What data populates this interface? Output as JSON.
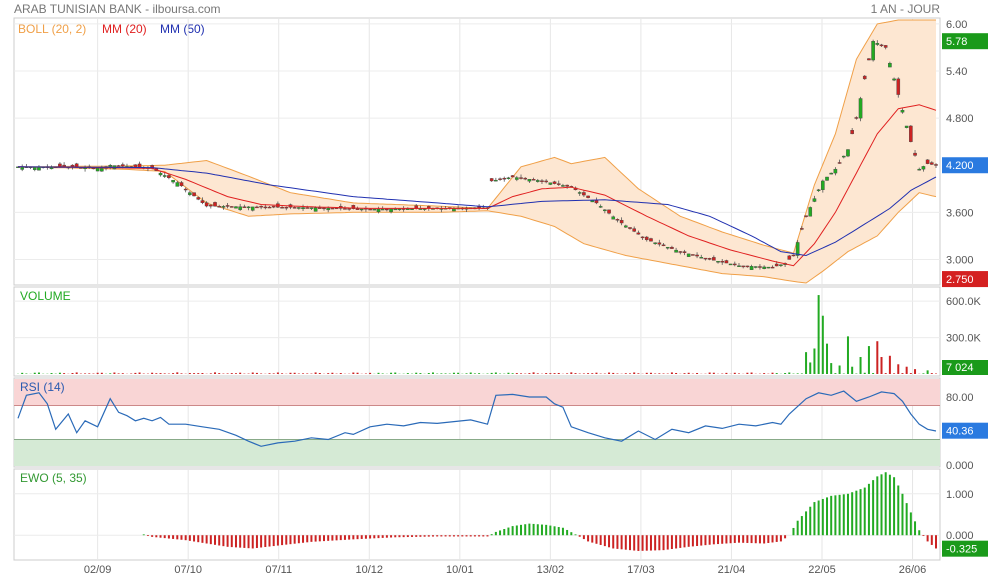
{
  "header": {
    "title": "ARAB TUNISIAN BANK - ilboursa.com",
    "period": "1 AN - JOUR"
  },
  "legend": {
    "boll": "BOLL (20, 2)",
    "mm20": "MM (20)",
    "mm50": "MM (50)"
  },
  "colors": {
    "boll": "#f0a048",
    "boll_fill": "#fde7d2",
    "mm20": "#e02020",
    "mm50": "#2030b0",
    "up": "#22aa22",
    "down": "#cc2222",
    "rsi_line": "#2a6ab8",
    "rsi_high_zone": "#f9d5d5",
    "rsi_low_zone": "#d5ead5",
    "badge_green": "#1a9a1a",
    "badge_blue": "#2a7ae0",
    "badge_red": "#d42020"
  },
  "chart_data": [
    {
      "panel": "price",
      "type": "candlestick",
      "yticks": [
        "6.00",
        "5.40",
        "4.800",
        "3.600",
        "3.000"
      ],
      "ylim": [
        2.7,
        6.05
      ],
      "badges": [
        {
          "label": "5.78",
          "value": 5.78,
          "color": "badge_green"
        },
        {
          "label": "4.200",
          "value": 4.2,
          "color": "badge_blue"
        },
        {
          "label": "2.750",
          "value": 2.75,
          "color": "badge_red"
        }
      ],
      "xlabels": [
        "02/09",
        "07/10",
        "07/11",
        "10/12",
        "10/01",
        "13/02",
        "17/03",
        "21/04",
        "22/05",
        "26/06"
      ],
      "close_path": [
        [
          0,
          4.18
        ],
        [
          10,
          4.18
        ],
        [
          20,
          4.16
        ],
        [
          22,
          4.2
        ],
        [
          32,
          4.16
        ],
        [
          38,
          3.98
        ],
        [
          45,
          3.68
        ],
        [
          55,
          3.67
        ],
        [
          70,
          3.66
        ],
        [
          84,
          3.64
        ],
        [
          100,
          3.65
        ],
        [
          112,
          3.66
        ],
        [
          113,
          4.0
        ],
        [
          118,
          4.05
        ],
        [
          125,
          4.0
        ],
        [
          132,
          3.92
        ],
        [
          138,
          3.72
        ],
        [
          143,
          3.5
        ],
        [
          150,
          3.25
        ],
        [
          158,
          3.1
        ],
        [
          165,
          3.0
        ],
        [
          172,
          2.92
        ],
        [
          180,
          2.9
        ],
        [
          183,
          2.95
        ],
        [
          185,
          3.05
        ],
        [
          188,
          3.55
        ],
        [
          192,
          4.0
        ],
        [
          195,
          4.15
        ],
        [
          198,
          4.4
        ],
        [
          200,
          4.8
        ],
        [
          202,
          5.3
        ],
        [
          204,
          5.78
        ],
        [
          207,
          5.7
        ],
        [
          209,
          5.3
        ],
        [
          211,
          4.9
        ],
        [
          213,
          4.5
        ],
        [
          215,
          4.15
        ],
        [
          217,
          4.22
        ],
        [
          219,
          4.2
        ]
      ],
      "mm20_path": [
        [
          0,
          4.18
        ],
        [
          20,
          4.17
        ],
        [
          32,
          4.16
        ],
        [
          40,
          4.02
        ],
        [
          50,
          3.8
        ],
        [
          58,
          3.7
        ],
        [
          70,
          3.67
        ],
        [
          84,
          3.65
        ],
        [
          100,
          3.65
        ],
        [
          112,
          3.65
        ],
        [
          118,
          3.8
        ],
        [
          125,
          3.9
        ],
        [
          132,
          3.92
        ],
        [
          140,
          3.82
        ],
        [
          150,
          3.55
        ],
        [
          160,
          3.3
        ],
        [
          170,
          3.12
        ],
        [
          180,
          2.98
        ],
        [
          185,
          2.92
        ],
        [
          190,
          3.2
        ],
        [
          195,
          3.6
        ],
        [
          200,
          4.1
        ],
        [
          205,
          4.6
        ],
        [
          210,
          4.92
        ],
        [
          215,
          4.97
        ],
        [
          219,
          4.9
        ]
      ],
      "mm50_path": [
        [
          0,
          4.18
        ],
        [
          32,
          4.17
        ],
        [
          45,
          4.1
        ],
        [
          60,
          3.95
        ],
        [
          80,
          3.8
        ],
        [
          100,
          3.72
        ],
        [
          112,
          3.67
        ],
        [
          125,
          3.74
        ],
        [
          140,
          3.76
        ],
        [
          155,
          3.7
        ],
        [
          165,
          3.55
        ],
        [
          175,
          3.3
        ],
        [
          182,
          3.1
        ],
        [
          188,
          3.05
        ],
        [
          195,
          3.22
        ],
        [
          202,
          3.45
        ],
        [
          208,
          3.65
        ],
        [
          213,
          3.88
        ],
        [
          219,
          4.05
        ]
      ],
      "boll_upper_path": [
        [
          0,
          4.18
        ],
        [
          25,
          4.19
        ],
        [
          35,
          4.2
        ],
        [
          45,
          4.26
        ],
        [
          55,
          4.06
        ],
        [
          65,
          3.85
        ],
        [
          80,
          3.72
        ],
        [
          100,
          3.68
        ],
        [
          112,
          3.65
        ],
        [
          120,
          4.18
        ],
        [
          128,
          4.3
        ],
        [
          132,
          4.22
        ],
        [
          140,
          4.3
        ],
        [
          148,
          3.9
        ],
        [
          158,
          3.55
        ],
        [
          168,
          3.35
        ],
        [
          178,
          3.18
        ],
        [
          185,
          3.08
        ],
        [
          190,
          3.95
        ],
        [
          195,
          4.6
        ],
        [
          200,
          5.55
        ],
        [
          205,
          6.0
        ],
        [
          210,
          6.05
        ],
        [
          219,
          6.05
        ]
      ],
      "boll_lower_path": [
        [
          0,
          4.18
        ],
        [
          25,
          4.15
        ],
        [
          35,
          4.12
        ],
        [
          45,
          3.72
        ],
        [
          55,
          3.55
        ],
        [
          65,
          3.58
        ],
        [
          80,
          3.6
        ],
        [
          100,
          3.6
        ],
        [
          112,
          3.62
        ],
        [
          120,
          3.55
        ],
        [
          128,
          3.42
        ],
        [
          135,
          3.2
        ],
        [
          145,
          3.05
        ],
        [
          158,
          2.92
        ],
        [
          168,
          2.82
        ],
        [
          178,
          2.78
        ],
        [
          185,
          2.72
        ],
        [
          188,
          2.7
        ],
        [
          192,
          2.85
        ],
        [
          198,
          3.1
        ],
        [
          205,
          3.3
        ],
        [
          210,
          3.6
        ],
        [
          215,
          3.85
        ],
        [
          219,
          3.8
        ]
      ]
    },
    {
      "panel": "volume",
      "type": "bar",
      "label": "VOLUME",
      "yticks": [
        "600.0K",
        "300.0K"
      ],
      "ylim": [
        0,
        700000
      ],
      "badge": {
        "label": "7 024",
        "value": 7024
      },
      "spikes": [
        [
          188,
          180000
        ],
        [
          189,
          95000
        ],
        [
          190,
          210000
        ],
        [
          191,
          650000
        ],
        [
          192,
          480000
        ],
        [
          193,
          250000
        ],
        [
          194,
          90000
        ],
        [
          196,
          70000
        ],
        [
          198,
          310000
        ],
        [
          199,
          60000
        ],
        [
          201,
          140000
        ],
        [
          203,
          230000
        ],
        [
          205,
          270000
        ],
        [
          206,
          140000
        ],
        [
          208,
          150000
        ],
        [
          210,
          80000
        ],
        [
          212,
          60000
        ],
        [
          214,
          40000
        ],
        [
          217,
          30000
        ]
      ]
    },
    {
      "panel": "rsi",
      "type": "line",
      "label": "RSI (14)",
      "yticks": [
        "80.00",
        "0.000"
      ],
      "ylim": [
        0,
        100
      ],
      "zones": [
        70,
        30
      ],
      "badge": {
        "label": "40.36",
        "value": 40.36
      },
      "points": [
        [
          0,
          55
        ],
        [
          2,
          82
        ],
        [
          5,
          85
        ],
        [
          7,
          72
        ],
        [
          9,
          42
        ],
        [
          12,
          60
        ],
        [
          14,
          38
        ],
        [
          16,
          52
        ],
        [
          19,
          45
        ],
        [
          22,
          78
        ],
        [
          24,
          62
        ],
        [
          26,
          58
        ],
        [
          28,
          52
        ],
        [
          30,
          55
        ],
        [
          32,
          52
        ],
        [
          34,
          56
        ],
        [
          36,
          48
        ],
        [
          40,
          48
        ],
        [
          44,
          45
        ],
        [
          48,
          42
        ],
        [
          52,
          35
        ],
        [
          55,
          28
        ],
        [
          58,
          22
        ],
        [
          62,
          26
        ],
        [
          66,
          28
        ],
        [
          70,
          32
        ],
        [
          74,
          30
        ],
        [
          78,
          38
        ],
        [
          80,
          36
        ],
        [
          84,
          45
        ],
        [
          88,
          48
        ],
        [
          92,
          46
        ],
        [
          96,
          50
        ],
        [
          100,
          49
        ],
        [
          104,
          51
        ],
        [
          108,
          53
        ],
        [
          112,
          48
        ],
        [
          114,
          82
        ],
        [
          118,
          83
        ],
        [
          122,
          80
        ],
        [
          126,
          80
        ],
        [
          128,
          72
        ],
        [
          130,
          68
        ],
        [
          132,
          45
        ],
        [
          136,
          38
        ],
        [
          140,
          32
        ],
        [
          144,
          28
        ],
        [
          148,
          40
        ],
        [
          152,
          30
        ],
        [
          156,
          42
        ],
        [
          160,
          38
        ],
        [
          164,
          46
        ],
        [
          168,
          43
        ],
        [
          172,
          48
        ],
        [
          176,
          46
        ],
        [
          180,
          50
        ],
        [
          182,
          48
        ],
        [
          184,
          60
        ],
        [
          188,
          78
        ],
        [
          191,
          85
        ],
        [
          194,
          82
        ],
        [
          197,
          87
        ],
        [
          200,
          75
        ],
        [
          203,
          80
        ],
        [
          206,
          86
        ],
        [
          209,
          84
        ],
        [
          211,
          75
        ],
        [
          213,
          60
        ],
        [
          215,
          48
        ],
        [
          217,
          42
        ],
        [
          219,
          40
        ]
      ]
    },
    {
      "panel": "ewo",
      "type": "bar",
      "label": "EWO (5, 35)",
      "yticks": [
        "1.000",
        "0.000"
      ],
      "ylim": [
        -0.55,
        1.55
      ],
      "badge": {
        "label": "-0.325",
        "value": -0.325
      },
      "points": [
        [
          0,
          0
        ],
        [
          20,
          0
        ],
        [
          22,
          0.05
        ],
        [
          25,
          0.06
        ],
        [
          28,
          0.05
        ],
        [
          30,
          0.02
        ],
        [
          32,
          -0.04
        ],
        [
          40,
          -0.12
        ],
        [
          50,
          -0.28
        ],
        [
          56,
          -0.32
        ],
        [
          62,
          -0.25
        ],
        [
          70,
          -0.16
        ],
        [
          80,
          -0.1
        ],
        [
          90,
          -0.05
        ],
        [
          100,
          -0.03
        ],
        [
          112,
          -0.03
        ],
        [
          114,
          0.08
        ],
        [
          118,
          0.22
        ],
        [
          122,
          0.28
        ],
        [
          126,
          0.25
        ],
        [
          130,
          0.18
        ],
        [
          133,
          0.02
        ],
        [
          136,
          -0.15
        ],
        [
          142,
          -0.32
        ],
        [
          148,
          -0.38
        ],
        [
          154,
          -0.36
        ],
        [
          160,
          -0.28
        ],
        [
          166,
          -0.22
        ],
        [
          172,
          -0.18
        ],
        [
          178,
          -0.2
        ],
        [
          182,
          -0.15
        ],
        [
          184,
          0.0
        ],
        [
          186,
          0.35
        ],
        [
          190,
          0.8
        ],
        [
          194,
          0.95
        ],
        [
          198,
          1.0
        ],
        [
          202,
          1.15
        ],
        [
          205,
          1.42
        ],
        [
          207,
          1.52
        ],
        [
          209,
          1.4
        ],
        [
          211,
          1.0
        ],
        [
          213,
          0.55
        ],
        [
          215,
          0.12
        ],
        [
          217,
          -0.15
        ],
        [
          219,
          -0.32
        ]
      ]
    }
  ]
}
